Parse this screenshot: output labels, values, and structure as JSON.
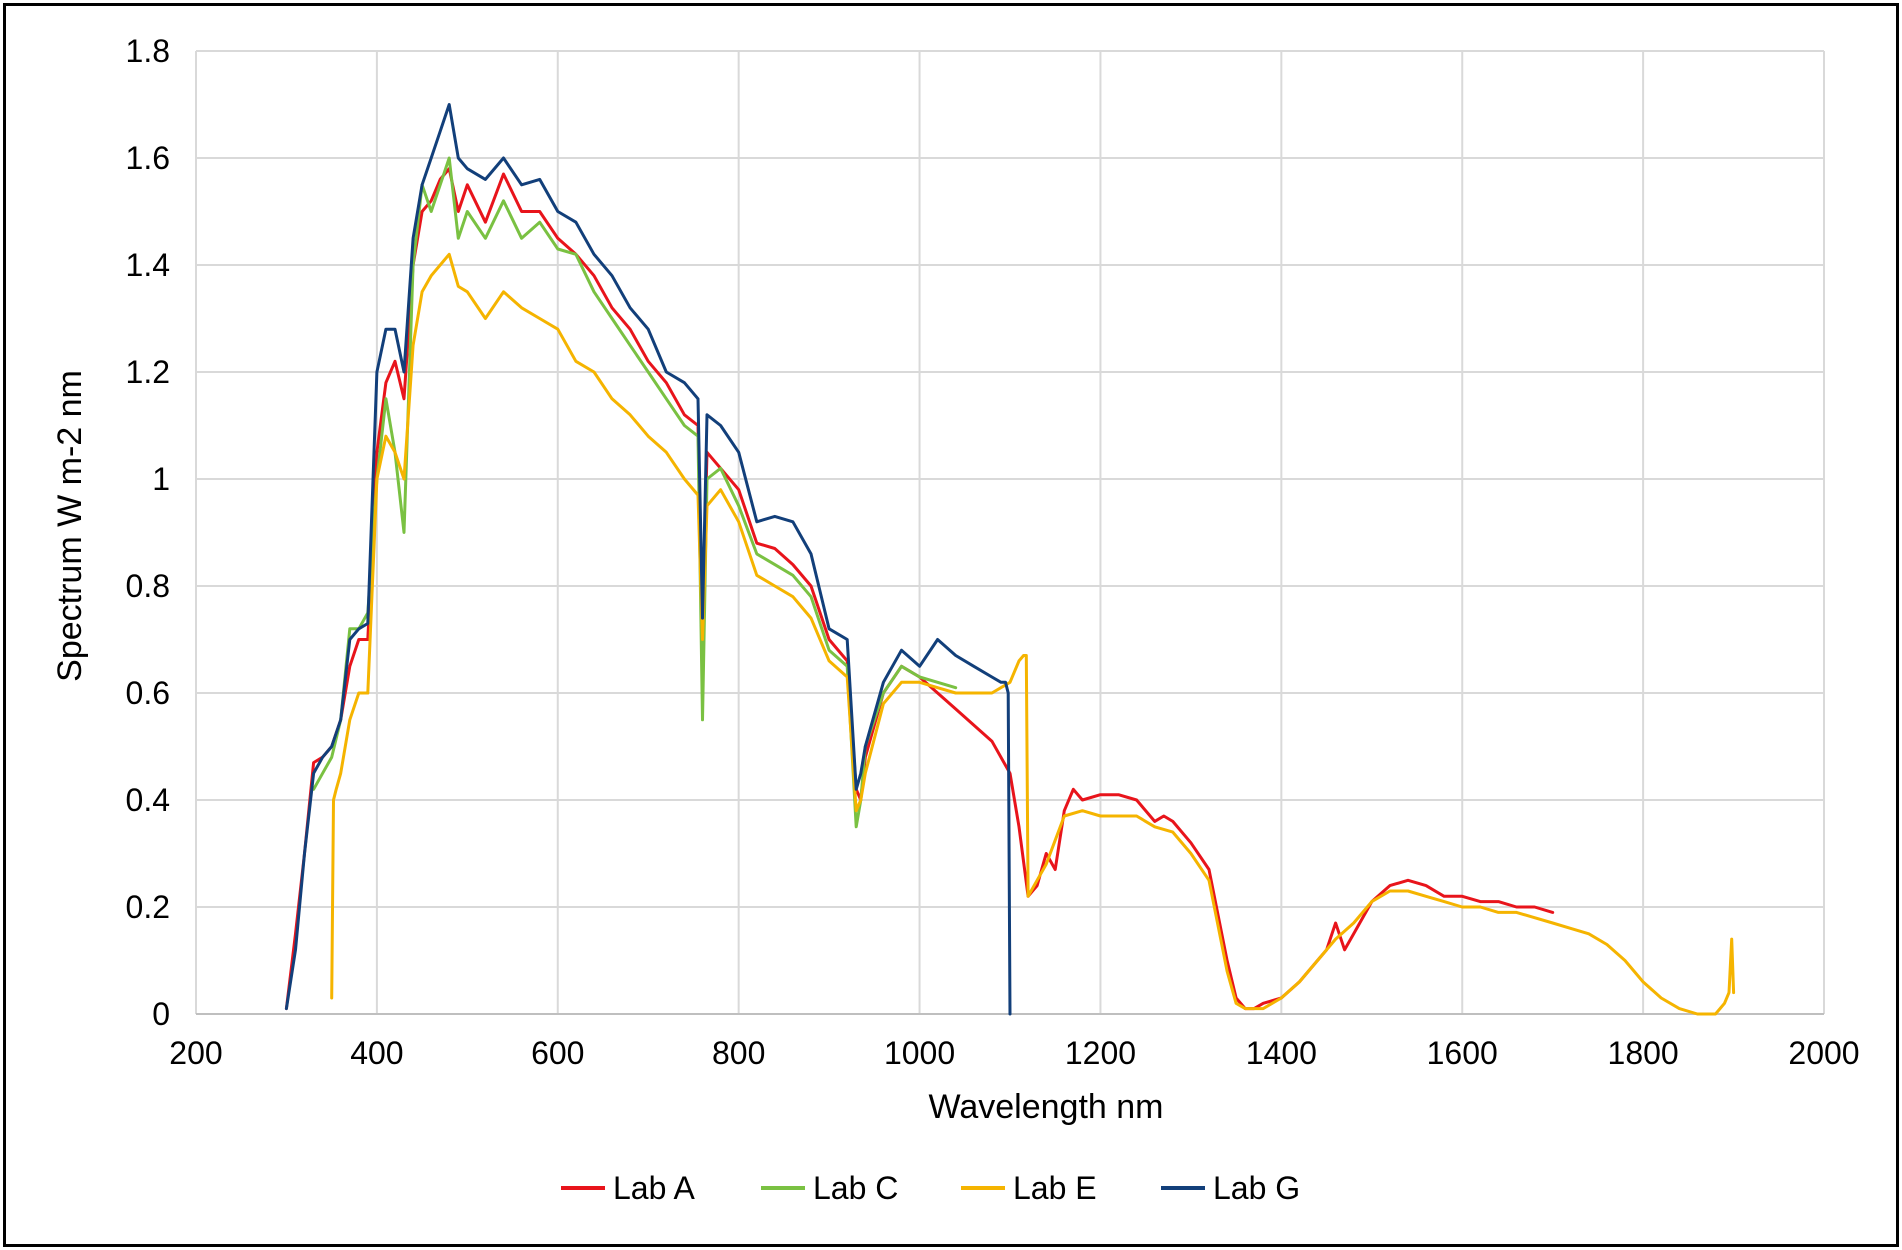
{
  "chart_data": {
    "type": "line",
    "title": "",
    "xlabel": "Wavelength nm",
    "ylabel": "Spectrum W m-2 nm",
    "xlim": [
      200,
      2000
    ],
    "ylim": [
      0,
      1.8
    ],
    "x_ticks": [
      "200",
      "400",
      "600",
      "800",
      "1000",
      "1200",
      "1400",
      "1600",
      "1800",
      "2000"
    ],
    "y_ticks": [
      "0",
      "0.2",
      "0.4",
      "0.6",
      "0.8",
      "1",
      "1.2",
      "1.4",
      "1.6",
      "1.8"
    ],
    "grid": true,
    "legend_position": "bottom",
    "colors": {
      "Lab A": "#e8141b",
      "Lab C": "#7ac142",
      "Lab E": "#f5b400",
      "Lab G": "#123f7a"
    },
    "series": [
      {
        "name": "Lab A",
        "x": [
          300,
          310,
          320,
          330,
          340,
          350,
          360,
          370,
          380,
          390,
          400,
          410,
          420,
          430,
          440,
          450,
          460,
          470,
          480,
          490,
          500,
          520,
          540,
          560,
          580,
          600,
          620,
          640,
          660,
          680,
          700,
          720,
          740,
          755,
          760,
          765,
          780,
          800,
          820,
          840,
          860,
          880,
          900,
          920,
          930,
          935,
          940,
          960,
          980,
          1000,
          1020,
          1040,
          1060,
          1080,
          1100,
          1110,
          1120,
          1130,
          1140,
          1150,
          1160,
          1170,
          1180,
          1200,
          1220,
          1240,
          1260,
          1270,
          1280,
          1300,
          1320,
          1340,
          1350,
          1360,
          1370,
          1380,
          1400,
          1420,
          1440,
          1450,
          1460,
          1470,
          1480,
          1500,
          1520,
          1540,
          1560,
          1580,
          1600,
          1620,
          1640,
          1660,
          1680,
          1700
        ],
        "y": [
          0.01,
          0.15,
          0.3,
          0.47,
          0.48,
          0.5,
          0.55,
          0.65,
          0.7,
          0.7,
          1.05,
          1.18,
          1.22,
          1.15,
          1.4,
          1.5,
          1.52,
          1.56,
          1.58,
          1.5,
          1.55,
          1.48,
          1.57,
          1.5,
          1.5,
          1.45,
          1.42,
          1.38,
          1.32,
          1.28,
          1.22,
          1.18,
          1.12,
          1.1,
          0.72,
          1.05,
          1.02,
          0.98,
          0.88,
          0.87,
          0.84,
          0.8,
          0.7,
          0.66,
          0.42,
          0.4,
          0.48,
          0.6,
          0.65,
          0.63,
          0.6,
          0.57,
          0.54,
          0.51,
          0.45,
          0.35,
          0.22,
          0.24,
          0.3,
          0.27,
          0.38,
          0.42,
          0.4,
          0.41,
          0.41,
          0.4,
          0.36,
          0.37,
          0.36,
          0.32,
          0.27,
          0.1,
          0.03,
          0.01,
          0.01,
          0.02,
          0.03,
          0.06,
          0.1,
          0.12,
          0.17,
          0.12,
          0.15,
          0.21,
          0.24,
          0.25,
          0.24,
          0.22,
          0.22,
          0.21,
          0.21,
          0.2,
          0.2,
          0.19
        ]
      },
      {
        "name": "Lab C",
        "x": [
          330,
          340,
          350,
          360,
          370,
          380,
          390,
          400,
          410,
          420,
          430,
          440,
          450,
          460,
          470,
          480,
          490,
          500,
          520,
          540,
          560,
          580,
          600,
          620,
          640,
          660,
          680,
          700,
          720,
          740,
          755,
          760,
          765,
          780,
          800,
          820,
          840,
          860,
          880,
          900,
          920,
          930,
          935,
          940,
          960,
          980,
          1000,
          1020,
          1040
        ],
        "y": [
          0.42,
          0.45,
          0.48,
          0.55,
          0.72,
          0.72,
          0.75,
          1.0,
          1.15,
          1.05,
          0.9,
          1.4,
          1.55,
          1.5,
          1.55,
          1.6,
          1.45,
          1.5,
          1.45,
          1.52,
          1.45,
          1.48,
          1.43,
          1.42,
          1.35,
          1.3,
          1.25,
          1.2,
          1.15,
          1.1,
          1.08,
          0.55,
          1.0,
          1.02,
          0.95,
          0.86,
          0.84,
          0.82,
          0.78,
          0.68,
          0.65,
          0.35,
          0.4,
          0.5,
          0.6,
          0.65,
          0.63,
          0.62,
          0.61
        ]
      },
      {
        "name": "Lab E",
        "x": [
          350,
          352,
          355,
          360,
          370,
          380,
          390,
          400,
          410,
          420,
          430,
          440,
          450,
          460,
          470,
          480,
          490,
          500,
          520,
          540,
          560,
          580,
          600,
          620,
          640,
          660,
          680,
          700,
          720,
          740,
          755,
          760,
          765,
          780,
          800,
          820,
          840,
          860,
          880,
          900,
          920,
          930,
          935,
          940,
          960,
          980,
          1000,
          1020,
          1040,
          1060,
          1080,
          1100,
          1110,
          1115,
          1118,
          1120,
          1130,
          1140,
          1160,
          1180,
          1200,
          1220,
          1240,
          1260,
          1280,
          1300,
          1320,
          1340,
          1350,
          1360,
          1370,
          1380,
          1400,
          1420,
          1440,
          1460,
          1480,
          1500,
          1520,
          1540,
          1560,
          1580,
          1600,
          1620,
          1640,
          1660,
          1680,
          1700,
          1720,
          1740,
          1760,
          1780,
          1800,
          1820,
          1840,
          1860,
          1870,
          1880,
          1890,
          1895,
          1898,
          1900
        ],
        "y": [
          0.03,
          0.4,
          0.42,
          0.45,
          0.55,
          0.6,
          0.6,
          1.0,
          1.08,
          1.05,
          1.0,
          1.25,
          1.35,
          1.38,
          1.4,
          1.42,
          1.36,
          1.35,
          1.3,
          1.35,
          1.32,
          1.3,
          1.28,
          1.22,
          1.2,
          1.15,
          1.12,
          1.08,
          1.05,
          1.0,
          0.97,
          0.7,
          0.95,
          0.98,
          0.92,
          0.82,
          0.8,
          0.78,
          0.74,
          0.66,
          0.63,
          0.38,
          0.4,
          0.45,
          0.58,
          0.62,
          0.62,
          0.61,
          0.6,
          0.6,
          0.6,
          0.62,
          0.66,
          0.67,
          0.67,
          0.22,
          0.25,
          0.28,
          0.37,
          0.38,
          0.37,
          0.37,
          0.37,
          0.35,
          0.34,
          0.3,
          0.25,
          0.08,
          0.02,
          0.01,
          0.01,
          0.01,
          0.03,
          0.06,
          0.1,
          0.14,
          0.17,
          0.21,
          0.23,
          0.23,
          0.22,
          0.21,
          0.2,
          0.2,
          0.19,
          0.19,
          0.18,
          0.17,
          0.16,
          0.15,
          0.13,
          0.1,
          0.06,
          0.03,
          0.01,
          0.0,
          0.0,
          0.0,
          0.02,
          0.04,
          0.14,
          0.04
        ]
      },
      {
        "name": "Lab G",
        "x": [
          300,
          310,
          320,
          330,
          340,
          350,
          360,
          370,
          380,
          390,
          400,
          410,
          420,
          430,
          440,
          450,
          460,
          470,
          480,
          490,
          500,
          520,
          540,
          560,
          580,
          600,
          620,
          640,
          660,
          680,
          700,
          720,
          740,
          755,
          760,
          765,
          780,
          800,
          820,
          840,
          860,
          880,
          900,
          920,
          930,
          935,
          940,
          960,
          980,
          1000,
          1020,
          1040,
          1060,
          1080,
          1090,
          1095,
          1098,
          1100
        ],
        "y": [
          0.01,
          0.12,
          0.3,
          0.45,
          0.48,
          0.5,
          0.55,
          0.7,
          0.72,
          0.73,
          1.2,
          1.28,
          1.28,
          1.2,
          1.45,
          1.55,
          1.6,
          1.65,
          1.7,
          1.6,
          1.58,
          1.56,
          1.6,
          1.55,
          1.56,
          1.5,
          1.48,
          1.42,
          1.38,
          1.32,
          1.28,
          1.2,
          1.18,
          1.15,
          0.74,
          1.12,
          1.1,
          1.05,
          0.92,
          0.93,
          0.92,
          0.86,
          0.72,
          0.7,
          0.42,
          0.45,
          0.5,
          0.62,
          0.68,
          0.65,
          0.7,
          0.67,
          0.65,
          0.63,
          0.62,
          0.62,
          0.6,
          0.0
        ]
      }
    ]
  }
}
